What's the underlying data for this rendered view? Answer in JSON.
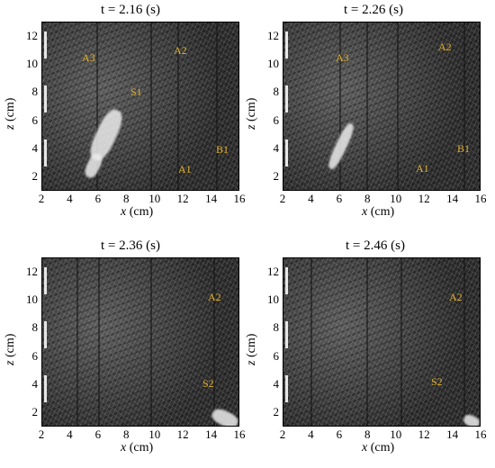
{
  "panels": [
    {
      "title": "t = 2.16  (s)",
      "labels": [
        {
          "text": "A3"
        },
        {
          "text": "A2"
        },
        {
          "text": "S1"
        },
        {
          "text": "B1"
        },
        {
          "text": "A1"
        }
      ]
    },
    {
      "title": "t = 2.26  (s)",
      "labels": [
        {
          "text": "A3"
        },
        {
          "text": "A2"
        },
        {
          "text": "B1"
        },
        {
          "text": "A1"
        }
      ]
    },
    {
      "title": "t = 2.36  (s)",
      "labels": [
        {
          "text": "A2"
        },
        {
          "text": "S2"
        }
      ]
    },
    {
      "title": "t = 2.46  (s)",
      "labels": [
        {
          "text": "A2"
        },
        {
          "text": "S2"
        }
      ]
    }
  ],
  "axes": {
    "x_label_var": "x",
    "x_label_unit": " (cm)",
    "y_label_var": "z",
    "y_label_unit": " (cm)",
    "x_ticks": [
      "2",
      "4",
      "6",
      "8",
      "10",
      "12",
      "14",
      "16"
    ],
    "y_ticks": [
      "12",
      "10",
      "8",
      "6",
      "4",
      "2"
    ]
  },
  "colors": {
    "label": "#e0b030"
  }
}
